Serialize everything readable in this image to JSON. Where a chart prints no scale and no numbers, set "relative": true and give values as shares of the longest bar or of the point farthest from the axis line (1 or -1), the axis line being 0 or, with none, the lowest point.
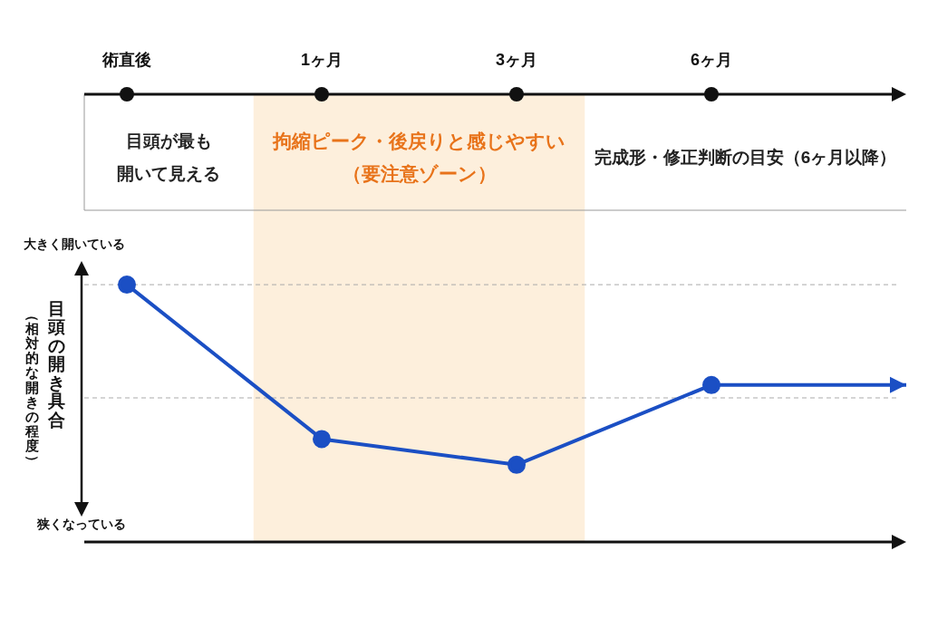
{
  "chart_data": {
    "type": "line",
    "relative": true,
    "categories": [
      "術直後",
      "1ヶ月",
      "3ヶ月",
      "6ヶ月",
      null
    ],
    "series": [
      {
        "color": "#1b4fc4",
        "values": [
          1,
          0.4,
          0.3,
          0.61,
          0.61
        ]
      }
    ],
    "ylabel": "目頭の開き具合",
    "marker": "circle",
    "grid": false,
    "legend": false,
    "bands": [
      {
        "axis": "x",
        "from": "1ヶ月",
        "to": "3ヶ月",
        "label": "拘縮ピーク・後戻りと感じやすい（要注意ゾーン）",
        "color": "#fdefdc"
      }
    ],
    "ref_lines": [
      {
        "axis": "y",
        "value": 1,
        "color": "#aaaaaa",
        "line_style": "dashed"
      },
      {
        "axis": "y",
        "value": 0.56,
        "color": "#aaaaaa",
        "line_style": "dashed"
      }
    ],
    "annotations": [
      "目頭が最も開いて見える",
      "完成形・修正判断の目安（6ヶ月以降）",
      "大きく開いている",
      "狭くなっている",
      "（相対的な開きの程度）"
    ]
  }
}
